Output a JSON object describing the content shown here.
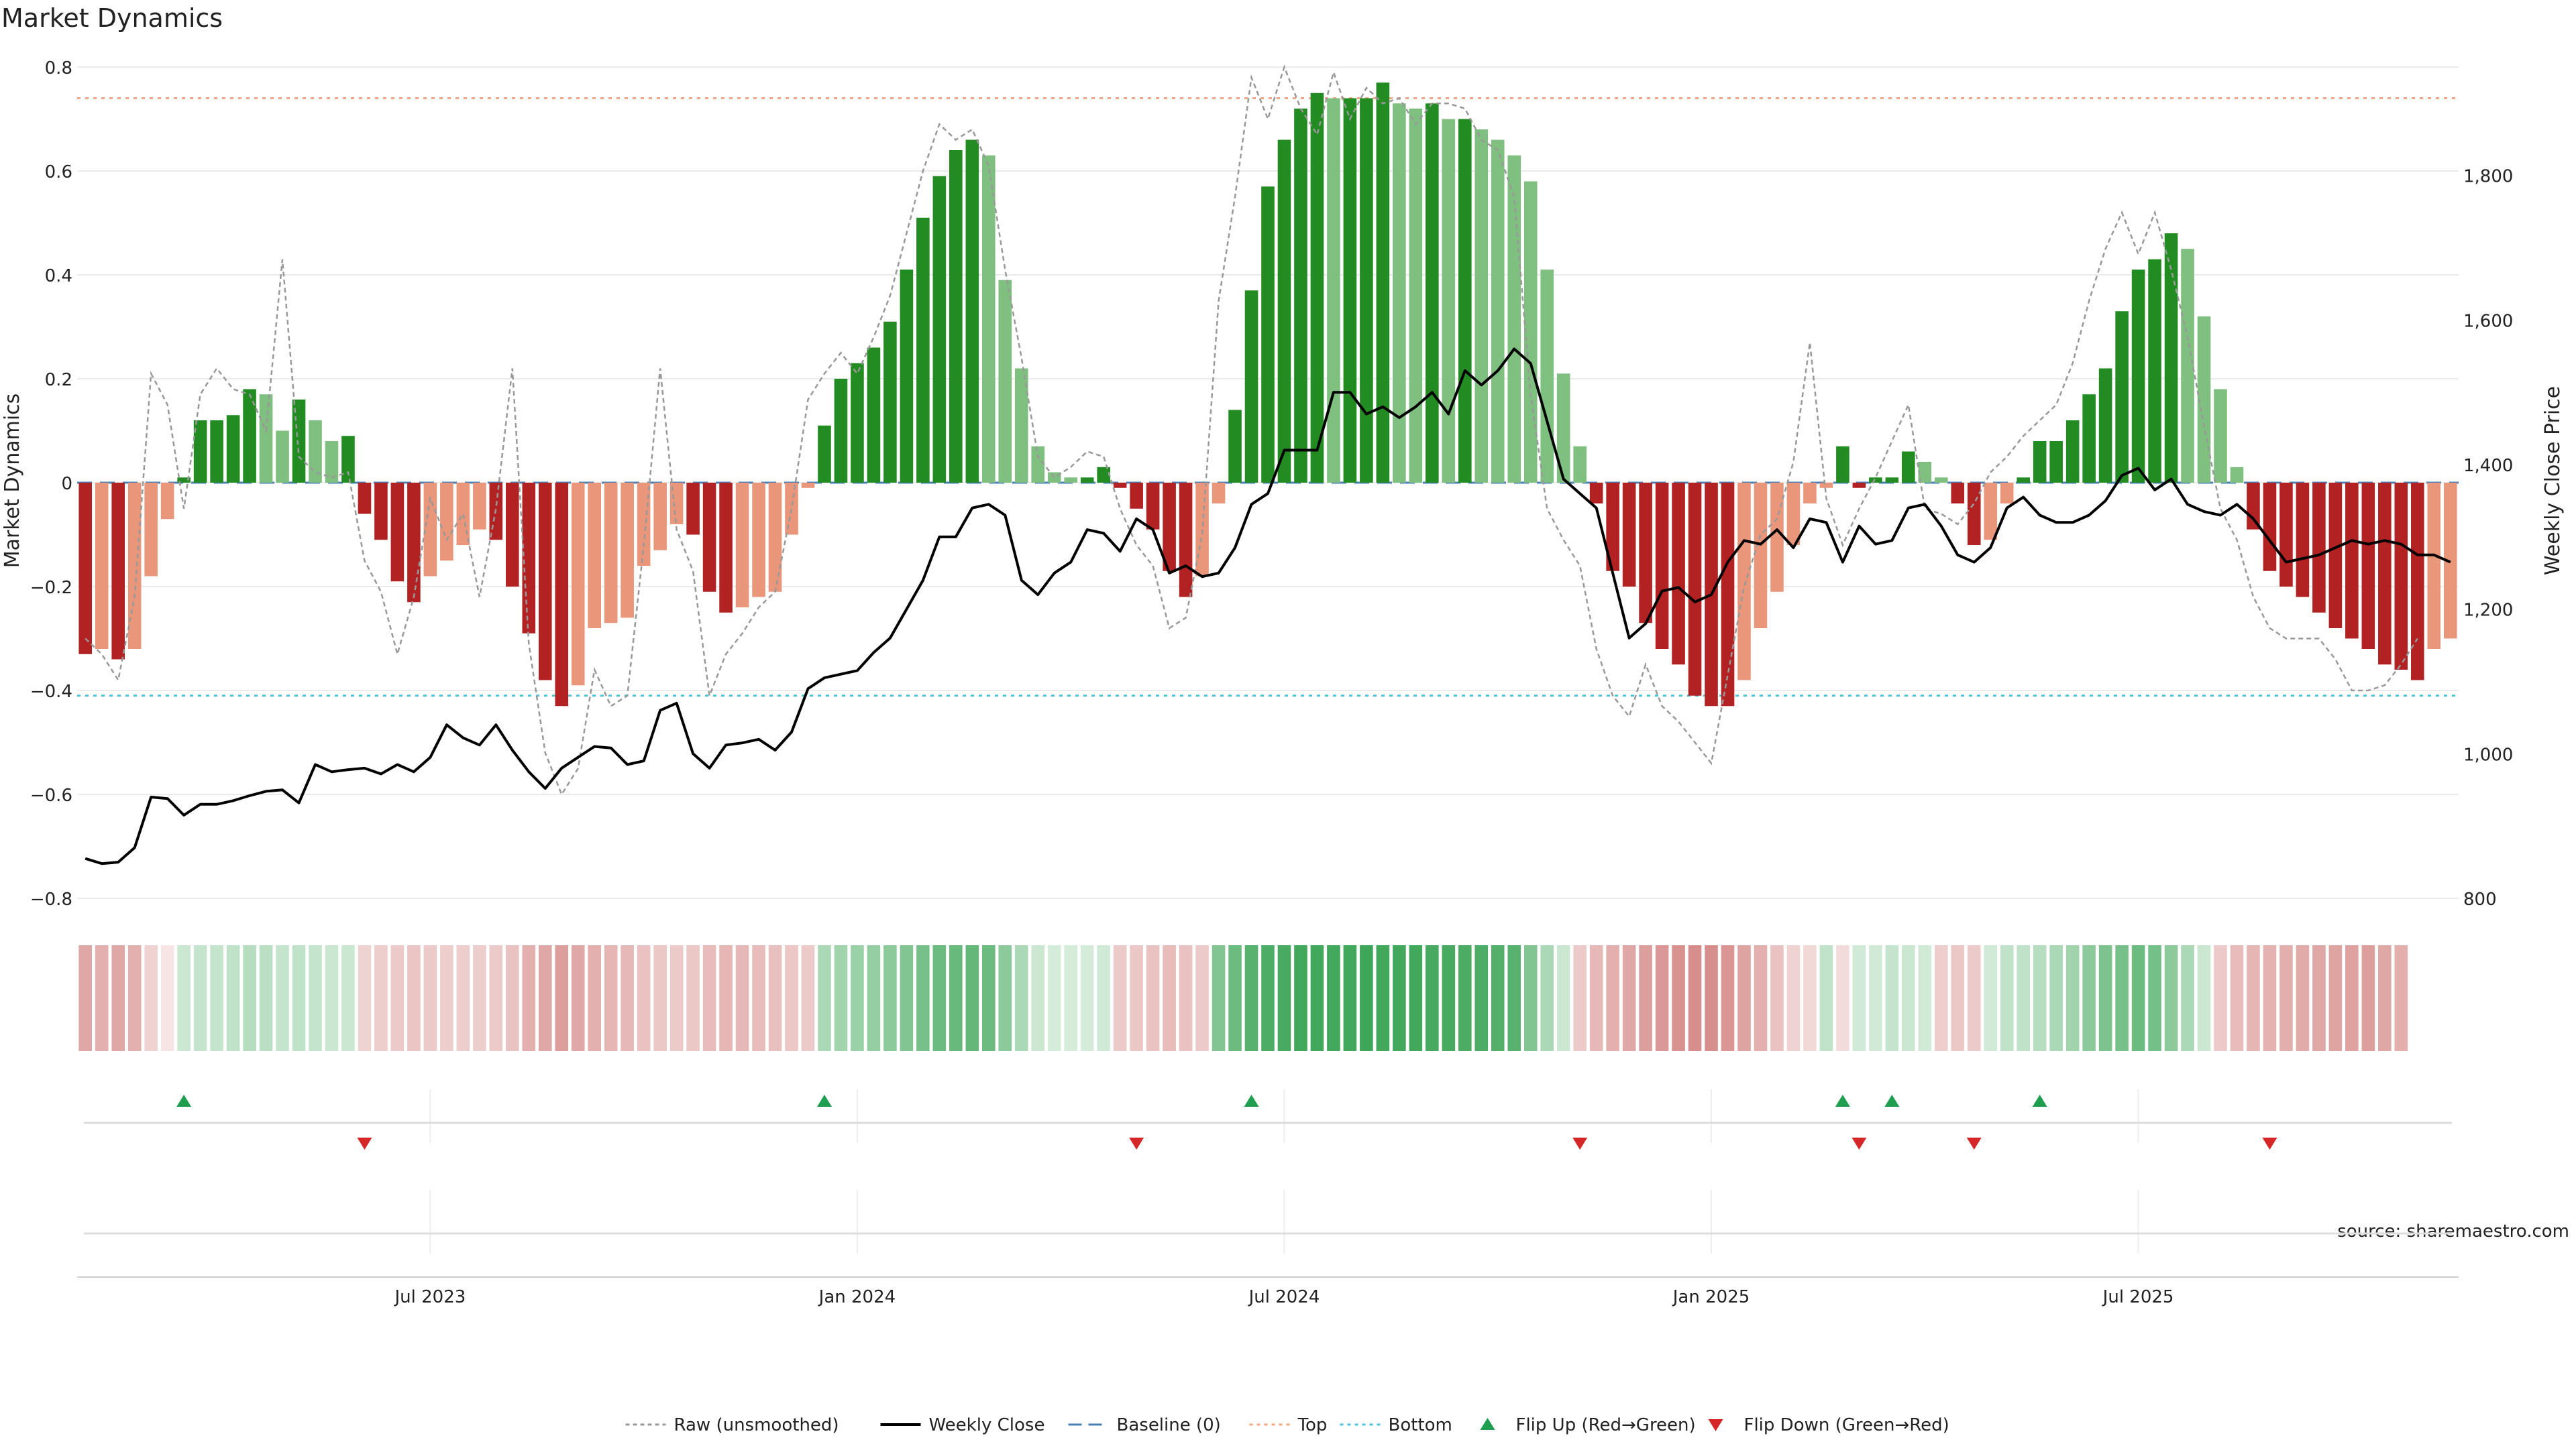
{
  "chart_data": {
    "type": "bar",
    "title": "Market Dynamics",
    "ylabel_left": "Market Dynamics",
    "ylabel_right": "Weekly Close Price",
    "source": "source: sharemaestro.com",
    "left_ylim": [
      -0.8,
      0.8
    ],
    "left_ticks": [
      {
        "value": 0.8,
        "label": "0.8"
      },
      {
        "value": 0.6,
        "label": "0.6"
      },
      {
        "value": 0.4,
        "label": "0.4"
      },
      {
        "value": 0.2,
        "label": "0.2"
      },
      {
        "value": 0.0,
        "label": "0"
      },
      {
        "value": -0.2,
        "label": "−0.2"
      },
      {
        "value": -0.4,
        "label": "−0.4"
      },
      {
        "value": -0.6,
        "label": "−0.6"
      },
      {
        "value": -0.8,
        "label": "−0.8"
      }
    ],
    "right_ylim": [
      800,
      1950
    ],
    "right_ticks": [
      {
        "value": 1800,
        "label": "1,800"
      },
      {
        "value": 1600,
        "label": "1,600"
      },
      {
        "value": 1400,
        "label": "1,400"
      },
      {
        "value": 1200,
        "label": "1,200"
      },
      {
        "value": 1000,
        "label": "1,000"
      },
      {
        "value": 800,
        "label": "800"
      }
    ],
    "x_ticks": [
      {
        "index": 21,
        "label": "Jul 2023"
      },
      {
        "index": 47,
        "label": "Jan 2024"
      },
      {
        "index": 73,
        "label": "Jul 2024"
      },
      {
        "index": 99,
        "label": "Jan 2025"
      },
      {
        "index": 125,
        "label": "Jul 2025"
      }
    ],
    "top_threshold": 0.74,
    "bottom_threshold": -0.41,
    "baseline": 0,
    "colors": {
      "strong_green": "#228b22",
      "light_green": "#7fbf7f",
      "strong_red": "#b22222",
      "light_red": "#e9967a",
      "close_line": "#000000",
      "raw_line": "#999999",
      "baseline": "#4a7fb5",
      "top": "#f4a582",
      "bottom": "#4dc4d8",
      "flip_up": "#1e9e4e",
      "flip_down": "#d62728"
    },
    "smoothed_values": [
      -0.33,
      -0.32,
      -0.34,
      -0.32,
      -0.18,
      -0.07,
      0.01,
      0.12,
      0.12,
      0.13,
      0.18,
      0.17,
      0.1,
      0.16,
      0.12,
      0.08,
      0.09,
      -0.06,
      -0.11,
      -0.19,
      -0.23,
      -0.18,
      -0.15,
      -0.12,
      -0.09,
      -0.11,
      -0.2,
      -0.29,
      -0.38,
      -0.43,
      -0.39,
      -0.28,
      -0.27,
      -0.26,
      -0.16,
      -0.13,
      -0.08,
      -0.1,
      -0.21,
      -0.25,
      -0.24,
      -0.22,
      -0.21,
      -0.1,
      -0.01,
      0.11,
      0.2,
      0.23,
      0.26,
      0.31,
      0.41,
      0.51,
      0.59,
      0.64,
      0.66,
      0.63,
      0.39,
      0.22,
      0.07,
      0.02,
      0.01,
      0.01,
      0.03,
      -0.01,
      -0.05,
      -0.09,
      -0.17,
      -0.22,
      -0.18,
      -0.04,
      0.14,
      0.37,
      0.57,
      0.66,
      0.72,
      0.75,
      0.74,
      0.74,
      0.74,
      0.77,
      0.73,
      0.72,
      0.73,
      0.7,
      0.7,
      0.68,
      0.66,
      0.63,
      0.58,
      0.41,
      0.21,
      0.07,
      -0.04,
      -0.17,
      -0.2,
      -0.27,
      -0.32,
      -0.35,
      -0.41,
      -0.43,
      -0.43,
      -0.38,
      -0.28,
      -0.21,
      -0.12,
      -0.04,
      -0.01,
      0.07,
      -0.01,
      0.01,
      0.01,
      0.06,
      0.04,
      0.01,
      -0.04,
      -0.12,
      -0.11,
      -0.04,
      0.01,
      0.08,
      0.08,
      0.12,
      0.17,
      0.22,
      0.33,
      0.41,
      0.43,
      0.48,
      0.45,
      0.32,
      0.18,
      0.03,
      -0.09,
      -0.17,
      -0.2,
      -0.22,
      -0.25,
      -0.28,
      -0.3,
      -0.32,
      -0.35,
      -0.36,
      -0.38,
      -0.32,
      -0.3
    ],
    "raw_values": [
      -0.3,
      -0.33,
      -0.38,
      -0.22,
      0.21,
      0.15,
      -0.05,
      0.17,
      0.22,
      0.18,
      0.17,
      0.1,
      0.43,
      0.05,
      0.02,
      0.01,
      0.02,
      -0.15,
      -0.21,
      -0.33,
      -0.22,
      -0.03,
      -0.11,
      -0.06,
      -0.22,
      -0.05,
      0.22,
      -0.31,
      -0.52,
      -0.6,
      -0.55,
      -0.36,
      -0.43,
      -0.41,
      -0.12,
      0.22,
      -0.09,
      -0.17,
      -0.41,
      -0.33,
      -0.29,
      -0.24,
      -0.21,
      -0.05,
      0.16,
      0.21,
      0.25,
      0.21,
      0.28,
      0.36,
      0.48,
      0.6,
      0.69,
      0.66,
      0.68,
      0.61,
      0.41,
      0.24,
      0.05,
      0.01,
      0.03,
      0.06,
      0.05,
      -0.05,
      -0.12,
      -0.16,
      -0.28,
      -0.26,
      -0.1,
      0.35,
      0.55,
      0.78,
      0.7,
      0.8,
      0.72,
      0.67,
      0.79,
      0.7,
      0.76,
      0.73,
      0.74,
      0.69,
      0.73,
      0.73,
      0.72,
      0.66,
      0.64,
      0.55,
      0.17,
      -0.05,
      -0.11,
      -0.16,
      -0.32,
      -0.41,
      -0.45,
      -0.35,
      -0.43,
      -0.46,
      -0.5,
      -0.54,
      -0.37,
      -0.2,
      -0.1,
      -0.07,
      0.04,
      0.27,
      -0.03,
      -0.12,
      -0.05,
      0.01,
      0.08,
      0.15,
      -0.05,
      -0.06,
      -0.08,
      -0.04,
      0.02,
      0.05,
      0.09,
      0.12,
      0.15,
      0.23,
      0.35,
      0.45,
      0.52,
      0.44,
      0.52,
      0.41,
      0.28,
      0.11,
      -0.05,
      -0.11,
      -0.22,
      -0.28,
      -0.3,
      -0.3,
      -0.3,
      -0.34,
      -0.4,
      -0.4,
      -0.39,
      -0.35,
      -0.3
    ],
    "weekly_close": [
      855,
      848,
      850,
      870,
      940,
      938,
      915,
      930,
      930,
      935,
      942,
      948,
      950,
      932,
      985,
      975,
      978,
      980,
      972,
      985,
      975,
      995,
      1040,
      1022,
      1012,
      1040,
      1005,
      975,
      952,
      980,
      995,
      1010,
      1008,
      985,
      990,
      1060,
      1070,
      1000,
      980,
      1012,
      1015,
      1020,
      1005,
      1030,
      1090,
      1105,
      1110,
      1115,
      1140,
      1160,
      1200,
      1240,
      1300,
      1300,
      1340,
      1345,
      1330,
      1240,
      1220,
      1250,
      1265,
      1310,
      1305,
      1280,
      1325,
      1310,
      1250,
      1260,
      1245,
      1250,
      1285,
      1345,
      1360,
      1420,
      1420,
      1420,
      1500,
      1500,
      1470,
      1480,
      1465,
      1480,
      1500,
      1470,
      1530,
      1510,
      1530,
      1560,
      1540,
      1460,
      1380,
      1360,
      1340,
      1250,
      1160,
      1180,
      1225,
      1230,
      1210,
      1220,
      1265,
      1295,
      1290,
      1310,
      1285,
      1325,
      1320,
      1265,
      1315,
      1290,
      1295,
      1340,
      1345,
      1315,
      1275,
      1265,
      1285,
      1340,
      1355,
      1330,
      1320,
      1320,
      1330,
      1350,
      1385,
      1395,
      1365,
      1380,
      1345,
      1335,
      1330,
      1345,
      1325,
      1295,
      1265,
      1270,
      1275,
      1285,
      1295,
      1290,
      1295,
      1290,
      1275,
      1275,
      1265
    ],
    "heat_strip": [
      {
        "color": "red",
        "intensity": 0.5
      },
      {
        "color": "red",
        "intensity": 0.45
      },
      {
        "color": "red",
        "intensity": 0.5
      },
      {
        "color": "red",
        "intensity": 0.45
      },
      {
        "color": "red",
        "intensity": 0.25
      },
      {
        "color": "red",
        "intensity": 0.15
      },
      {
        "color": "green",
        "intensity": 0.25
      },
      {
        "color": "green",
        "intensity": 0.28
      },
      {
        "color": "green",
        "intensity": 0.28
      },
      {
        "color": "green",
        "intensity": 0.3
      },
      {
        "color": "green",
        "intensity": 0.35
      },
      {
        "color": "green",
        "intensity": 0.33
      },
      {
        "color": "green",
        "intensity": 0.28
      },
      {
        "color": "green",
        "intensity": 0.3
      },
      {
        "color": "green",
        "intensity": 0.28
      },
      {
        "color": "green",
        "intensity": 0.25
      },
      {
        "color": "green",
        "intensity": 0.25
      },
      {
        "color": "red",
        "intensity": 0.25
      },
      {
        "color": "red",
        "intensity": 0.28
      },
      {
        "color": "red",
        "intensity": 0.3
      },
      {
        "color": "red",
        "intensity": 0.33
      },
      {
        "color": "red",
        "intensity": 0.3
      },
      {
        "color": "red",
        "intensity": 0.28
      },
      {
        "color": "red",
        "intensity": 0.28
      },
      {
        "color": "red",
        "intensity": 0.28
      },
      {
        "color": "red",
        "intensity": 0.3
      },
      {
        "color": "red",
        "intensity": 0.35
      },
      {
        "color": "red",
        "intensity": 0.45
      },
      {
        "color": "red",
        "intensity": 0.5
      },
      {
        "color": "red",
        "intensity": 0.55
      },
      {
        "color": "red",
        "intensity": 0.5
      },
      {
        "color": "red",
        "intensity": 0.45
      },
      {
        "color": "red",
        "intensity": 0.42
      },
      {
        "color": "red",
        "intensity": 0.4
      },
      {
        "color": "red",
        "intensity": 0.35
      },
      {
        "color": "red",
        "intensity": 0.32
      },
      {
        "color": "red",
        "intensity": 0.3
      },
      {
        "color": "red",
        "intensity": 0.32
      },
      {
        "color": "red",
        "intensity": 0.38
      },
      {
        "color": "red",
        "intensity": 0.42
      },
      {
        "color": "red",
        "intensity": 0.4
      },
      {
        "color": "red",
        "intensity": 0.38
      },
      {
        "color": "red",
        "intensity": 0.36
      },
      {
        "color": "red",
        "intensity": 0.32
      },
      {
        "color": "red",
        "intensity": 0.3
      },
      {
        "color": "green",
        "intensity": 0.4
      },
      {
        "color": "green",
        "intensity": 0.45
      },
      {
        "color": "green",
        "intensity": 0.48
      },
      {
        "color": "green",
        "intensity": 0.5
      },
      {
        "color": "green",
        "intensity": 0.55
      },
      {
        "color": "green",
        "intensity": 0.6
      },
      {
        "color": "green",
        "intensity": 0.65
      },
      {
        "color": "green",
        "intensity": 0.7
      },
      {
        "color": "green",
        "intensity": 0.72
      },
      {
        "color": "green",
        "intensity": 0.74
      },
      {
        "color": "green",
        "intensity": 0.7
      },
      {
        "color": "green",
        "intensity": 0.55
      },
      {
        "color": "green",
        "intensity": 0.4
      },
      {
        "color": "green",
        "intensity": 0.25
      },
      {
        "color": "green",
        "intensity": 0.2
      },
      {
        "color": "green",
        "intensity": 0.2
      },
      {
        "color": "green",
        "intensity": 0.2
      },
      {
        "color": "green",
        "intensity": 0.22
      },
      {
        "color": "red",
        "intensity": 0.3
      },
      {
        "color": "red",
        "intensity": 0.32
      },
      {
        "color": "red",
        "intensity": 0.35
      },
      {
        "color": "red",
        "intensity": 0.38
      },
      {
        "color": "red",
        "intensity": 0.35
      },
      {
        "color": "red",
        "intensity": 0.3
      },
      {
        "color": "green",
        "intensity": 0.6
      },
      {
        "color": "green",
        "intensity": 0.7
      },
      {
        "color": "green",
        "intensity": 0.8
      },
      {
        "color": "green",
        "intensity": 0.85
      },
      {
        "color": "green",
        "intensity": 0.88
      },
      {
        "color": "green",
        "intensity": 0.9
      },
      {
        "color": "green",
        "intensity": 0.9
      },
      {
        "color": "green",
        "intensity": 0.9
      },
      {
        "color": "green",
        "intensity": 0.9
      },
      {
        "color": "green",
        "intensity": 0.92
      },
      {
        "color": "green",
        "intensity": 0.9
      },
      {
        "color": "green",
        "intensity": 0.9
      },
      {
        "color": "green",
        "intensity": 0.9
      },
      {
        "color": "green",
        "intensity": 0.88
      },
      {
        "color": "green",
        "intensity": 0.88
      },
      {
        "color": "green",
        "intensity": 0.86
      },
      {
        "color": "green",
        "intensity": 0.85
      },
      {
        "color": "green",
        "intensity": 0.82
      },
      {
        "color": "green",
        "intensity": 0.8
      },
      {
        "color": "green",
        "intensity": 0.6
      },
      {
        "color": "green",
        "intensity": 0.4
      },
      {
        "color": "green",
        "intensity": 0.25
      },
      {
        "color": "red",
        "intensity": 0.3
      },
      {
        "color": "red",
        "intensity": 0.4
      },
      {
        "color": "red",
        "intensity": 0.45
      },
      {
        "color": "red",
        "intensity": 0.5
      },
      {
        "color": "red",
        "intensity": 0.55
      },
      {
        "color": "red",
        "intensity": 0.58
      },
      {
        "color": "red",
        "intensity": 0.62
      },
      {
        "color": "red",
        "intensity": 0.64
      },
      {
        "color": "red",
        "intensity": 0.64
      },
      {
        "color": "red",
        "intensity": 0.6
      },
      {
        "color": "red",
        "intensity": 0.52
      },
      {
        "color": "red",
        "intensity": 0.45
      },
      {
        "color": "red",
        "intensity": 0.35
      },
      {
        "color": "red",
        "intensity": 0.25
      },
      {
        "color": "red",
        "intensity": 0.22
      },
      {
        "color": "green",
        "intensity": 0.3
      },
      {
        "color": "red",
        "intensity": 0.2
      },
      {
        "color": "green",
        "intensity": 0.22
      },
      {
        "color": "green",
        "intensity": 0.22
      },
      {
        "color": "green",
        "intensity": 0.28
      },
      {
        "color": "green",
        "intensity": 0.25
      },
      {
        "color": "green",
        "intensity": 0.22
      },
      {
        "color": "red",
        "intensity": 0.28
      },
      {
        "color": "red",
        "intensity": 0.32
      },
      {
        "color": "red",
        "intensity": 0.3
      },
      {
        "color": "green",
        "intensity": 0.22
      },
      {
        "color": "green",
        "intensity": 0.3
      },
      {
        "color": "green",
        "intensity": 0.3
      },
      {
        "color": "green",
        "intensity": 0.35
      },
      {
        "color": "green",
        "intensity": 0.4
      },
      {
        "color": "green",
        "intensity": 0.45
      },
      {
        "color": "green",
        "intensity": 0.55
      },
      {
        "color": "green",
        "intensity": 0.62
      },
      {
        "color": "green",
        "intensity": 0.65
      },
      {
        "color": "green",
        "intensity": 0.7
      },
      {
        "color": "green",
        "intensity": 0.66
      },
      {
        "color": "green",
        "intensity": 0.55
      },
      {
        "color": "green",
        "intensity": 0.4
      },
      {
        "color": "green",
        "intensity": 0.25
      },
      {
        "color": "red",
        "intensity": 0.3
      },
      {
        "color": "red",
        "intensity": 0.38
      },
      {
        "color": "red",
        "intensity": 0.42
      },
      {
        "color": "red",
        "intensity": 0.44
      },
      {
        "color": "red",
        "intensity": 0.46
      },
      {
        "color": "red",
        "intensity": 0.48
      },
      {
        "color": "red",
        "intensity": 0.5
      },
      {
        "color": "red",
        "intensity": 0.52
      },
      {
        "color": "red",
        "intensity": 0.53
      },
      {
        "color": "red",
        "intensity": 0.55
      },
      {
        "color": "red",
        "intensity": 0.5
      },
      {
        "color": "red",
        "intensity": 0.46
      }
    ],
    "flips_up": [
      6,
      45,
      71,
      107,
      110,
      119
    ],
    "flips_down": [
      17,
      64,
      91,
      108,
      115,
      133
    ],
    "legend": [
      {
        "key": "raw",
        "label": "Raw (unsmoothed)"
      },
      {
        "key": "close",
        "label": "Weekly Close"
      },
      {
        "key": "baseline",
        "label": "Baseline (0)"
      },
      {
        "key": "top",
        "label": "Top"
      },
      {
        "key": "bottom",
        "label": "Bottom"
      },
      {
        "key": "flip_up",
        "label": "Flip Up (Red→Green)"
      },
      {
        "key": "flip_down",
        "label": "Flip Down (Green→Red)"
      }
    ],
    "legend_placement": "bottom-center"
  }
}
